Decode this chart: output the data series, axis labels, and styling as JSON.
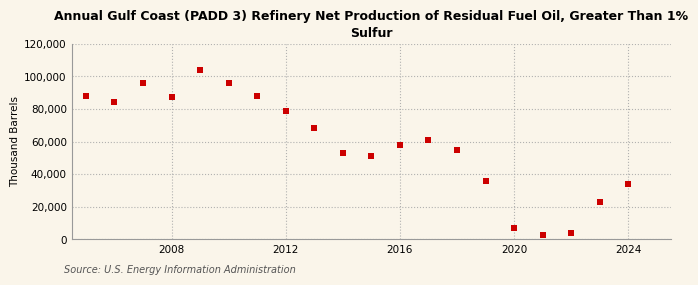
{
  "title": "Annual Gulf Coast (PADD 3) Refinery Net Production of Residual Fuel Oil, Greater Than 1%\nSulfur",
  "ylabel": "Thousand Barrels",
  "source": "Source: U.S. Energy Information Administration",
  "background_color": "#faf5ea",
  "plot_bg_color": "#faf5ea",
  "marker_color": "#cc0000",
  "marker_style": "s",
  "marker_size": 4,
  "grid_color": "#aaaaaa",
  "years": [
    2005,
    2006,
    2007,
    2008,
    2009,
    2010,
    2011,
    2012,
    2013,
    2014,
    2015,
    2016,
    2017,
    2018,
    2019,
    2020,
    2021,
    2022,
    2023,
    2024
  ],
  "values": [
    88000,
    84000,
    96000,
    87000,
    104000,
    96000,
    88000,
    79000,
    68000,
    53000,
    51000,
    58000,
    61000,
    55000,
    36000,
    7000,
    3000,
    4000,
    23000,
    34000
  ],
  "ylim": [
    0,
    120000
  ],
  "xlim": [
    2004.5,
    2025.5
  ],
  "yticks": [
    0,
    20000,
    40000,
    60000,
    80000,
    100000,
    120000
  ],
  "ytick_labels": [
    "0",
    "20,000",
    "40,000",
    "60,000",
    "80,000",
    "100,000",
    "120,000"
  ],
  "xticks": [
    2008,
    2012,
    2016,
    2020,
    2024
  ],
  "title_fontsize": 9,
  "label_fontsize": 7.5,
  "tick_fontsize": 7.5,
  "source_fontsize": 7
}
